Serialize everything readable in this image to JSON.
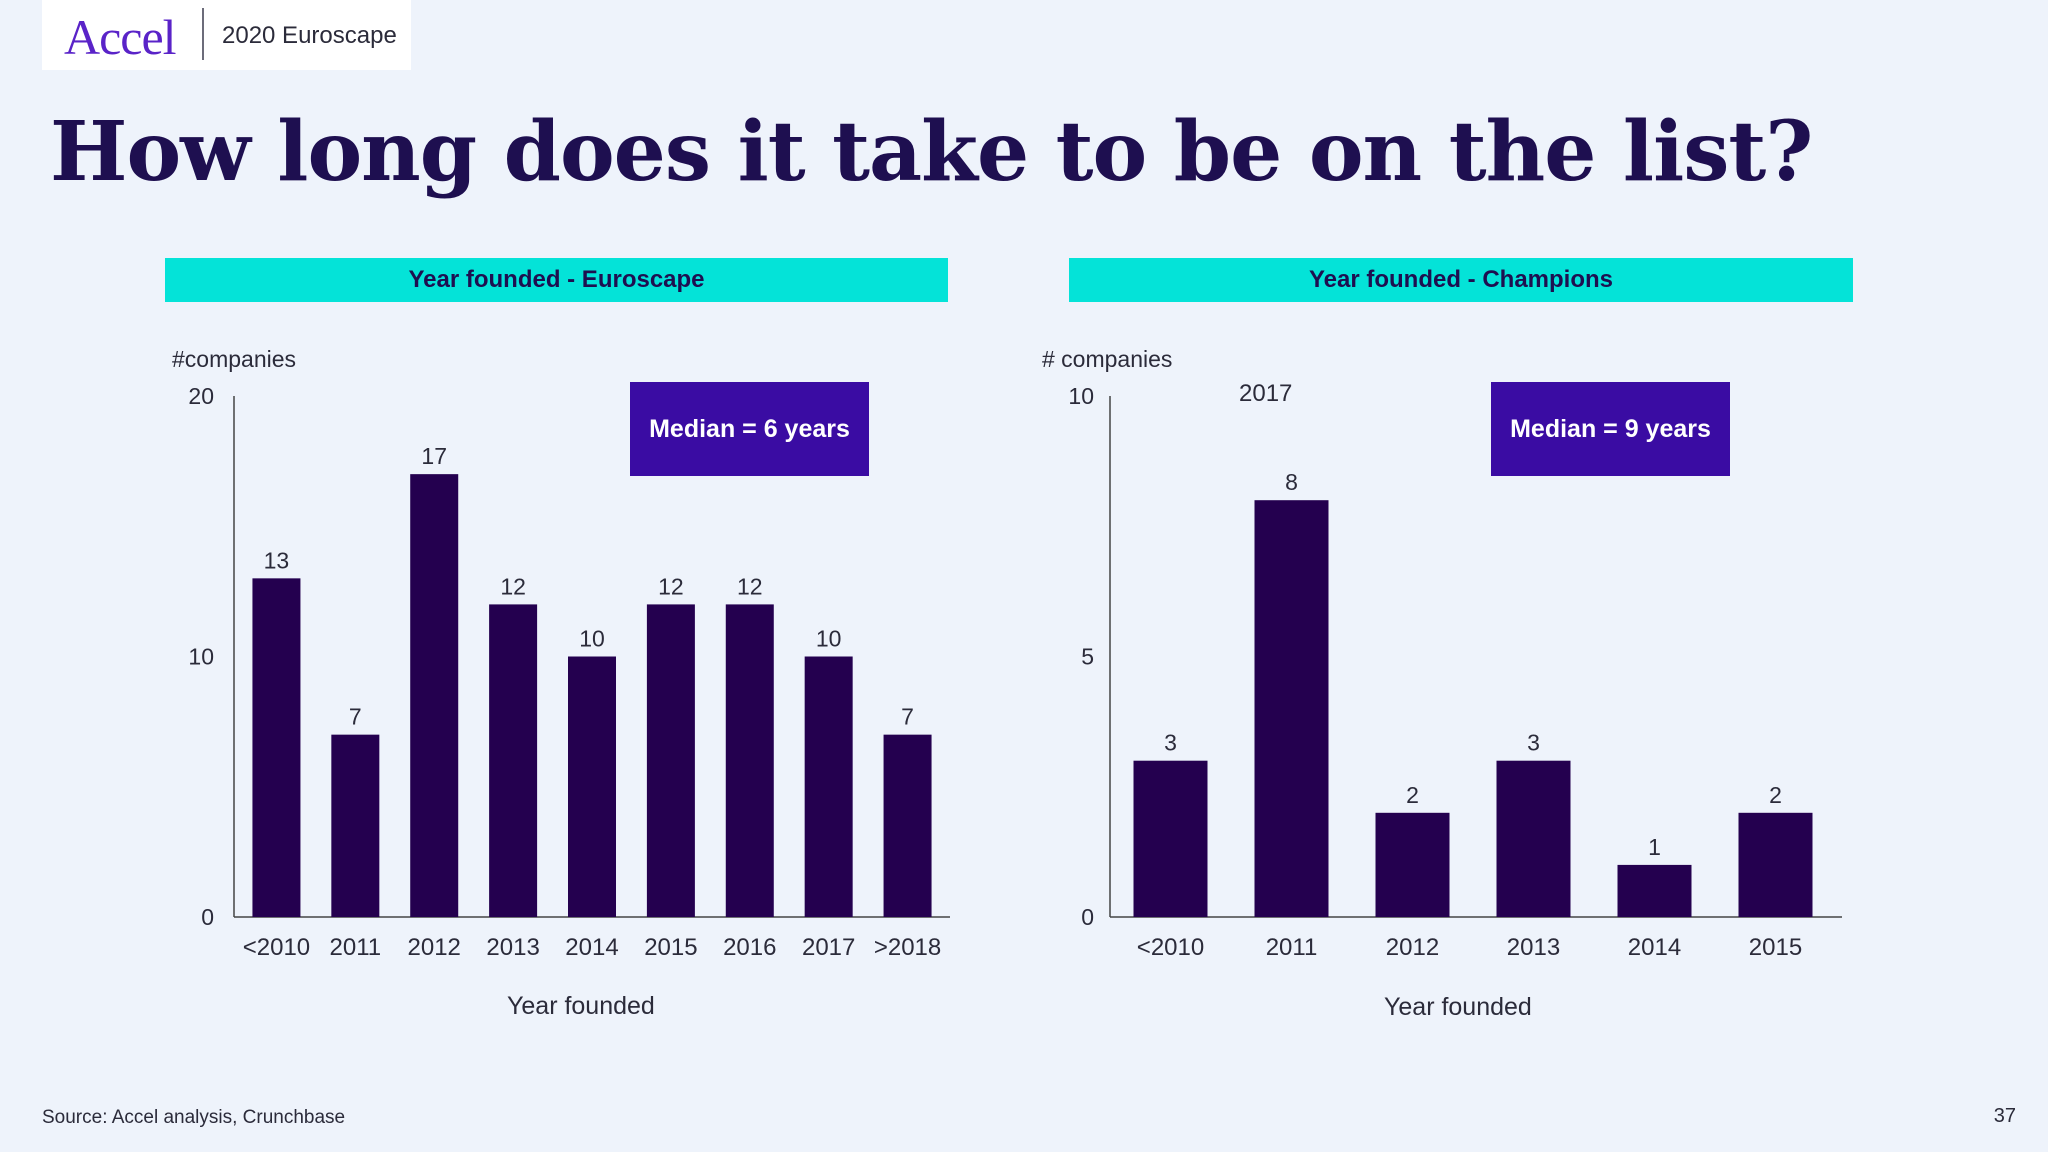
{
  "header": {
    "logo": "Accel",
    "deck": "2020 Euroscape"
  },
  "title": "How long does it take to be on the list?",
  "footer": {
    "source": "Source: Accel analysis, Crunchbase",
    "page": "37"
  },
  "colors": {
    "bar": "#24004f",
    "banner": "#04e3d8",
    "median_box": "#3a0ca3",
    "title": "#1e0f50",
    "background": "#eef3fb"
  },
  "stray_label": "2017",
  "chart_data": [
    {
      "type": "bar",
      "title": "Year founded - Euroscape",
      "ylabel": "#companies",
      "xlabel": "Year founded",
      "ylim": [
        0,
        20
      ],
      "yticks": [
        "0",
        "10",
        "20"
      ],
      "categories": [
        "<2010",
        "2011",
        "2012",
        "2013",
        "2014",
        "2015",
        "2016",
        "2017",
        ">2018"
      ],
      "values": [
        13,
        7,
        17,
        12,
        10,
        12,
        12,
        10,
        7
      ],
      "annotation": "Median = 6 years"
    },
    {
      "type": "bar",
      "title": "Year founded - Champions",
      "ylabel": "# companies",
      "xlabel": "Year founded",
      "ylim": [
        0,
        10
      ],
      "yticks": [
        "0",
        "5",
        "10"
      ],
      "categories": [
        "<2010",
        "2011",
        "2012",
        "2013",
        "2014",
        "2015"
      ],
      "values": [
        3,
        8,
        2,
        3,
        1,
        2
      ],
      "annotation": "Median = 9 years"
    }
  ]
}
